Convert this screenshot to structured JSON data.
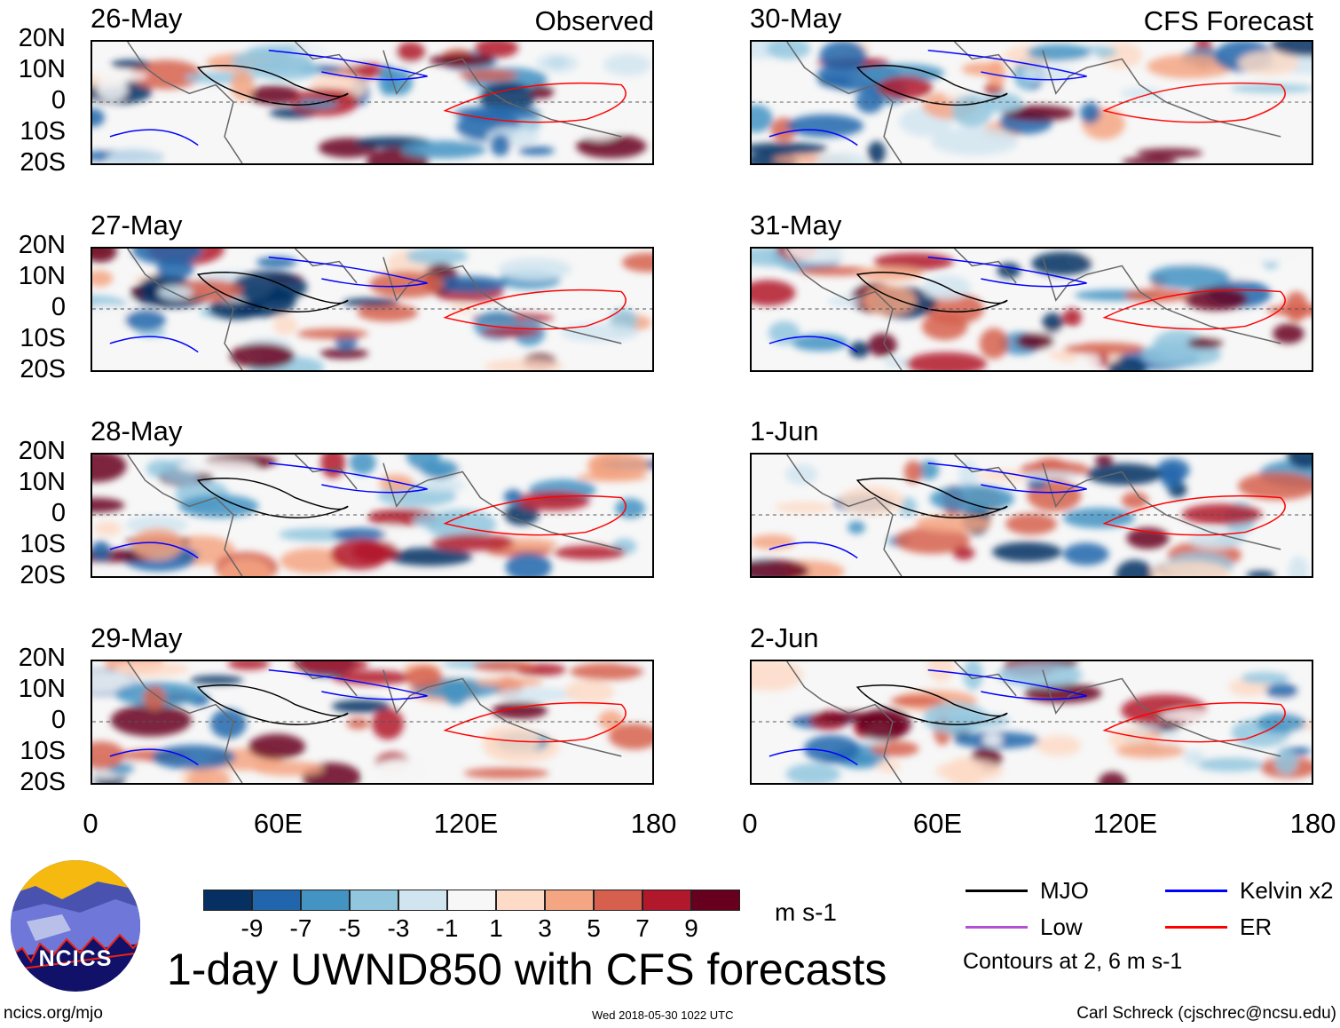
{
  "panels_left": {
    "corner_label": "Observed",
    "dates": [
      "26-May",
      "27-May",
      "28-May",
      "29-May"
    ]
  },
  "panels_right": {
    "corner_label": "CFS Forecast",
    "dates": [
      "30-May",
      "31-May",
      "1-Jun",
      "2-Jun"
    ]
  },
  "lat_labels": [
    "20N",
    "10N",
    "0",
    "10S",
    "20S"
  ],
  "lon_labels": [
    "0",
    "60E",
    "120E",
    "180"
  ],
  "colorbar": {
    "colors": [
      "#053061",
      "#2166ac",
      "#4393c3",
      "#92c5de",
      "#d1e5f0",
      "#f7f7f7",
      "#fddbc7",
      "#f4a582",
      "#d6604d",
      "#b2182b",
      "#67001f"
    ],
    "ticks": [
      "-9",
      "-7",
      "-5",
      "-3",
      "-1",
      "1",
      "3",
      "5",
      "7",
      "9"
    ],
    "units": "m s-1"
  },
  "title": "1-day UWND850 with CFS forecasts",
  "legend": {
    "items": [
      {
        "label": "MJO",
        "color": "#000000"
      },
      {
        "label": "Kelvin x2",
        "color": "#0000ff"
      },
      {
        "label": "Low",
        "color": "#b44fd8"
      },
      {
        "label": "ER",
        "color": "#ff0000"
      }
    ],
    "note": "Contours at 2, 6 m s-1"
  },
  "logo": {
    "text": "NCICS"
  },
  "footer": {
    "url": "ncics.org/mjo",
    "timestamp": "Wed 2018-05-30 1022 UTC",
    "credit": "Carl Schreck (cjschrec@ncsu.edu)"
  }
}
